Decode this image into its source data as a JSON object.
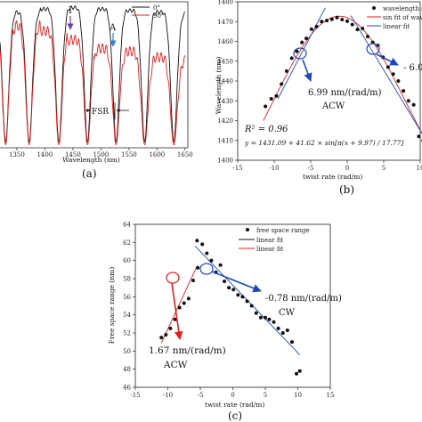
{
  "chart_data": [
    {
      "panel": "(a)",
      "type": "line",
      "xlabel": "Wavelength (nm)",
      "x_ticks": [
        1350,
        1400,
        1450,
        1500,
        1550,
        1600,
        1650
      ],
      "xlim": [
        1320,
        1655
      ],
      "legend": [
        {
          "name": "0°",
          "color": "#111111"
        },
        {
          "name": "90°",
          "color": "#e0201e"
        }
      ],
      "dip_wavelengths": [
        1330,
        1372,
        1425,
        1476,
        1527,
        1578,
        1630
      ],
      "annotations": [
        "I",
        "A",
        "FSR"
      ],
      "series": [
        {
          "name": "0°",
          "peak_level": [
            0.92,
            0.93,
            0.95,
            0.96,
            0.95,
            0.94,
            0.93,
            0.92
          ]
        },
        {
          "name": "90°",
          "peak_level": [
            0.86,
            0.84,
            0.8,
            0.74,
            0.68,
            0.66,
            0.62,
            0.6
          ]
        }
      ]
    },
    {
      "panel": "(b)",
      "type": "scatter",
      "xlabel": "twist rate (rad/m)",
      "ylabel": "Wavelength (nm)",
      "xlim": [
        -15,
        10
      ],
      "ylim": [
        1400,
        1480
      ],
      "x_ticks": [
        -15,
        -10,
        -5,
        0,
        5,
        10
      ],
      "y_ticks": [
        1400,
        1410,
        1420,
        1430,
        1440,
        1450,
        1460,
        1470,
        1480
      ],
      "legend": [
        "wavelength sh",
        "sin fit of wavele",
        "linear fit"
      ],
      "points": [
        [
          -11.2,
          1427.2
        ],
        [
          -10.4,
          1431.0
        ],
        [
          -9.7,
          1432.5
        ],
        [
          -9.0,
          1438.5
        ],
        [
          -8.3,
          1445.0
        ],
        [
          -7.6,
          1451.5
        ],
        [
          -6.9,
          1455.0
        ],
        [
          -6.2,
          1459.5
        ],
        [
          -5.6,
          1461.5
        ],
        [
          -4.9,
          1466.2
        ],
        [
          -4.2,
          1467.5
        ],
        [
          -3.5,
          1470.0
        ],
        [
          -2.8,
          1470.5
        ],
        [
          -2.1,
          1471.2
        ],
        [
          -1.4,
          1472.0
        ],
        [
          -0.7,
          1471.0
        ],
        [
          0.0,
          1470.2
        ],
        [
          0.7,
          1468.5
        ],
        [
          1.4,
          1466.0
        ],
        [
          2.1,
          1466.5
        ],
        [
          2.8,
          1462.5
        ],
        [
          3.5,
          1459.5
        ],
        [
          4.2,
          1458.0
        ],
        [
          4.9,
          1452.0
        ],
        [
          5.6,
          1447.0
        ],
        [
          6.3,
          1443.5
        ],
        [
          7.0,
          1440.0
        ],
        [
          7.7,
          1435.0
        ],
        [
          8.4,
          1430.0
        ],
        [
          9.1,
          1428.0
        ],
        [
          9.8,
          1412.0
        ],
        [
          10.4,
          1410.0
        ]
      ],
      "sin_fit": {
        "A": 1431.09,
        "B": 41.62,
        "C": 9.97,
        "D": 17.77
      },
      "linear_fit_left": [
        [
          -9.5,
          1431.0
        ],
        [
          -3.0,
          1477.0
        ]
      ],
      "linear_fit_right": [
        [
          0.5,
          1473.0
        ],
        [
          10.5,
          1412.0
        ]
      ],
      "annotations": {
        "r2": "R² = 0.96",
        "equation": "y = 1431.09 + 41.62 × sin[π(x + 9.97) / 17.77]",
        "slope_left": "6.99 nm/(rad/m)",
        "slope_left_dir": "ACW",
        "slope_right": "- 6.0"
      }
    },
    {
      "panel": "(c)",
      "type": "scatter",
      "xlabel": "twist rate (rad/m)",
      "ylabel": "Free space range (nm)",
      "xlim": [
        -15,
        15
      ],
      "ylim": [
        46,
        64
      ],
      "x_ticks": [
        -15,
        -10,
        -5,
        0,
        5,
        10,
        15
      ],
      "y_ticks": [
        46,
        48,
        50,
        52,
        54,
        56,
        58,
        60,
        62,
        64
      ],
      "legend": [
        {
          "name": "free space range",
          "kind": "dot",
          "color": "#111111"
        },
        {
          "name": "linear fit",
          "kind": "line",
          "color": "#111111"
        },
        {
          "name": "linear fit",
          "kind": "line",
          "color": "#e0201e"
        }
      ],
      "points": [
        [
          -11.0,
          51.5
        ],
        [
          -10.3,
          51.8
        ],
        [
          -9.6,
          52.5
        ],
        [
          -8.9,
          53.5
        ],
        [
          -8.2,
          54.8
        ],
        [
          -7.5,
          55.3
        ],
        [
          -6.8,
          55.8
        ],
        [
          -6.1,
          57.8
        ],
        [
          -5.4,
          59.2
        ],
        [
          -5.5,
          62.2
        ],
        [
          -4.7,
          61.8
        ],
        [
          -4.0,
          60.8
        ],
        [
          -3.3,
          60.0
        ],
        [
          -2.6,
          58.7
        ],
        [
          -1.9,
          59.5
        ],
        [
          -1.3,
          57.7
        ],
        [
          -0.6,
          57.0
        ],
        [
          0.1,
          56.8
        ],
        [
          0.8,
          56.2
        ],
        [
          1.5,
          56.0
        ],
        [
          2.2,
          55.5
        ],
        [
          2.9,
          55.0
        ],
        [
          3.6,
          54.2
        ],
        [
          4.3,
          53.7
        ],
        [
          5.0,
          53.7
        ],
        [
          5.6,
          53.5
        ],
        [
          6.3,
          53.2
        ],
        [
          7.0,
          52.5
        ],
        [
          7.7,
          52.0
        ],
        [
          8.4,
          52.3
        ],
        [
          9.1,
          51.0
        ],
        [
          9.8,
          47.5
        ],
        [
          10.3,
          47.8
        ]
      ],
      "linear_fit_red": [
        [
          -11.0,
          50.9
        ],
        [
          -5.5,
          59.4
        ]
      ],
      "linear_fit_black": [
        [
          -5.8,
          61.6
        ],
        [
          10.3,
          49.6
        ]
      ],
      "annotations": {
        "slope_right": "-0.78 nm/(rad/m)",
        "slope_right_dir": "CW",
        "slope_left": "1.67 nm/(rad/m)",
        "slope_left_dir": "ACW"
      }
    }
  ]
}
